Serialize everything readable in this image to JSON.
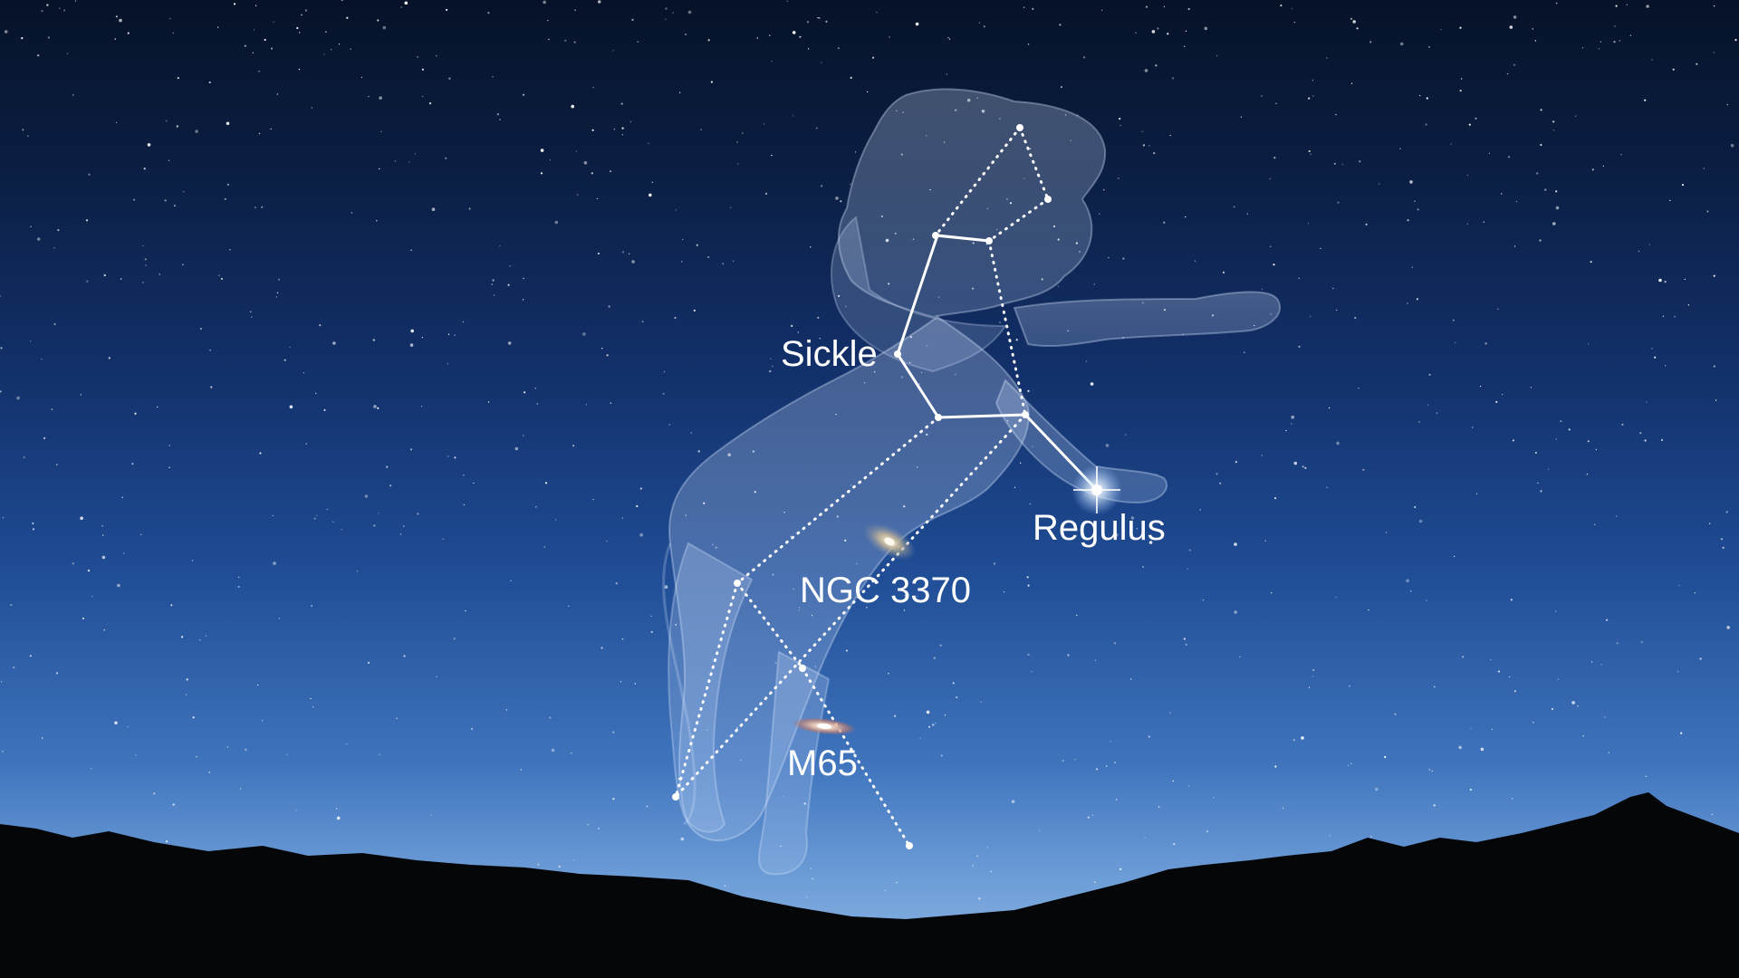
{
  "scene": {
    "subject": "Leo constellation over mountain silhouette at night",
    "labels": {
      "sickle": "Sickle",
      "regulus": "Regulus",
      "ngc3370": "NGC 3370",
      "m65": "M65"
    },
    "colors": {
      "sky_top": "#061228",
      "sky_horizon": "#8eb6e4",
      "lines": "#ffffff",
      "ground": "#050608"
    }
  }
}
